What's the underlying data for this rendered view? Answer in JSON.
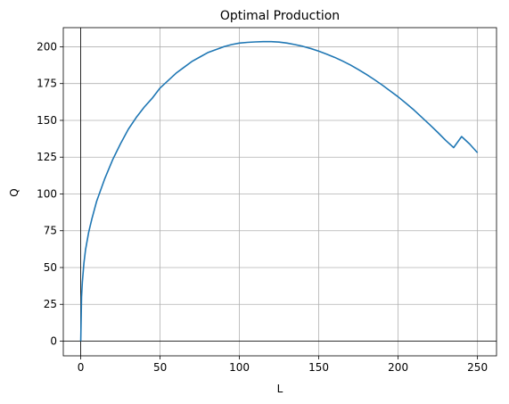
{
  "chart_data": {
    "type": "line",
    "title": "Optimal Production",
    "xlabel": "L",
    "ylabel": "Q",
    "xlim": [
      -11,
      262
    ],
    "ylim": [
      -10,
      213
    ],
    "xticks": [
      0,
      50,
      100,
      150,
      200,
      250
    ],
    "yticks": [
      0,
      25,
      50,
      75,
      100,
      125,
      150,
      175,
      200
    ],
    "grid": true,
    "reference_lines": {
      "x": 0,
      "y": 0
    },
    "colors": {
      "line": "#1f77b4",
      "grid": "#b0b0b0",
      "axes": "#000000"
    },
    "series": [
      {
        "x": [
          0,
          0.5,
          1,
          2,
          3,
          5,
          7,
          10,
          15,
          20,
          25,
          30,
          35,
          40,
          45,
          50,
          55,
          60,
          65,
          70,
          75,
          80,
          85,
          90,
          95,
          100,
          105,
          110,
          115,
          120,
          125,
          130,
          135,
          140,
          145,
          150,
          155,
          160,
          165,
          170,
          175,
          180,
          185,
          190,
          195,
          200,
          205,
          210,
          215,
          220,
          225,
          230,
          235,
          240,
          245,
          250
        ],
        "y": [
          0,
          30,
          40,
          53,
          62,
          74,
          83,
          95,
          110,
          123,
          134,
          144,
          152,
          159,
          165,
          172,
          177,
          182,
          186,
          190,
          193,
          196,
          198,
          200,
          201.5,
          202.5,
          203,
          203.3,
          203.5,
          203.5,
          203.2,
          202.5,
          201.5,
          200.3,
          198.8,
          197,
          195,
          192.8,
          190.3,
          187.6,
          184.5,
          181.2,
          177.7,
          174,
          170,
          166,
          161.6,
          157,
          152,
          147,
          141.8,
          136.4,
          131.5,
          139,
          134,
          128
        ]
      }
    ]
  }
}
